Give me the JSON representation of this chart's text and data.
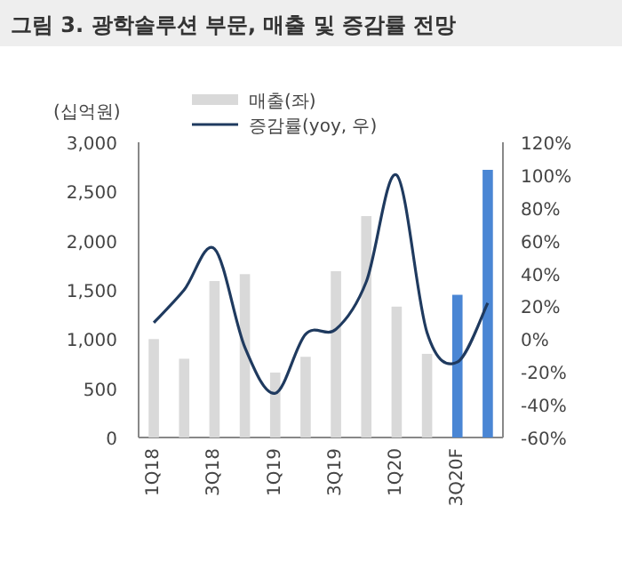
{
  "chart_data": {
    "type": "bar",
    "title": "그림 3. 광학솔루션 부문, 매출 및 증감률 전망",
    "ylabel": "(십억원)",
    "categories": [
      "1Q18",
      null,
      "3Q18",
      null,
      "1Q19",
      null,
      "3Q19",
      null,
      "1Q20",
      null,
      "3Q20F",
      null
    ],
    "series": [
      {
        "name": "매출(좌)",
        "color": "#d9d9d9",
        "colors": [
          "#d9d9d9",
          "#d9d9d9",
          "#d9d9d9",
          "#d9d9d9",
          "#d9d9d9",
          "#d9d9d9",
          "#d9d9d9",
          "#d9d9d9",
          "#d9d9d9",
          "#d9d9d9",
          "#4a86d4",
          "#4a86d4"
        ],
        "values": [
          1000,
          800,
          1590,
          1660,
          660,
          820,
          1690,
          2250,
          1330,
          850,
          1450,
          2720
        ]
      },
      {
        "name": "증감률(yoy, 우)",
        "type": "line",
        "axis": "y2",
        "color": "#1f3a5f",
        "values": [
          10,
          30,
          55,
          -5,
          -33,
          3,
          6,
          35,
          100,
          4,
          -14,
          22
        ]
      }
    ],
    "ylim": [
      0,
      3000
    ],
    "yticks": [
      {
        "value": 0,
        "label": "0"
      },
      {
        "value": 500,
        "label": "500"
      },
      {
        "value": 1000,
        "label": "1,000"
      },
      {
        "value": 1500,
        "label": "1,500"
      },
      {
        "value": 2000,
        "label": "2,000"
      },
      {
        "value": 2500,
        "label": "2,500"
      },
      {
        "value": 3000,
        "label": "3,000"
      }
    ],
    "y2lim": [
      -60,
      120
    ],
    "y2ticks": [
      {
        "value": -60,
        "label": "-60%"
      },
      {
        "value": -40,
        "label": "-40%"
      },
      {
        "value": -20,
        "label": "-20%"
      },
      {
        "value": 0,
        "label": "0%"
      },
      {
        "value": 20,
        "label": "20%"
      },
      {
        "value": 40,
        "label": "40%"
      },
      {
        "value": 60,
        "label": "60%"
      },
      {
        "value": 80,
        "label": "80%"
      },
      {
        "value": 100,
        "label": "100%"
      },
      {
        "value": 120,
        "label": "120%"
      }
    ],
    "legend": "top",
    "grid": false
  }
}
